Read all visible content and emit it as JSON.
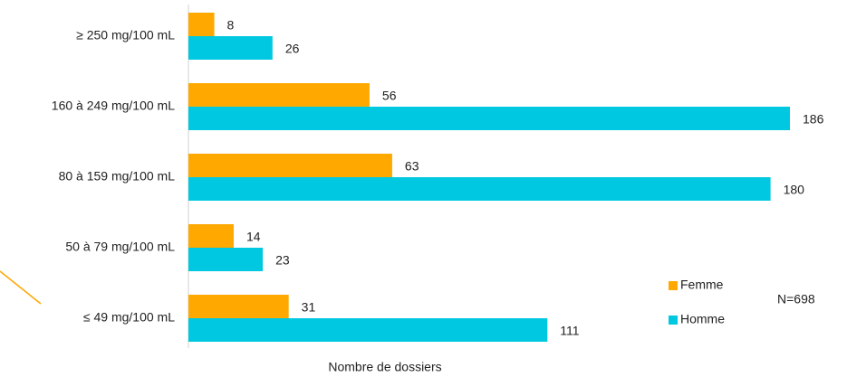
{
  "chart_data": {
    "type": "hbar",
    "categories": [
      "≥ 250 mg/100 mL",
      "160 à 249 mg/100 mL",
      "80 à 159 mg/100 mL",
      "50 à 79 mg/100 mL",
      "≤ 49 mg/100 mL"
    ],
    "series": [
      {
        "name": "Femme",
        "color": "#ffa800",
        "values": [
          8,
          56,
          63,
          14,
          31
        ]
      },
      {
        "name": "Homme",
        "color": "#00c8e0",
        "values": [
          26,
          186,
          180,
          23,
          111
        ]
      }
    ],
    "xlim": [
      0,
      200
    ],
    "xlabel": "Nombre de dossiers",
    "annotation": "N=698",
    "legend": "lower right"
  }
}
